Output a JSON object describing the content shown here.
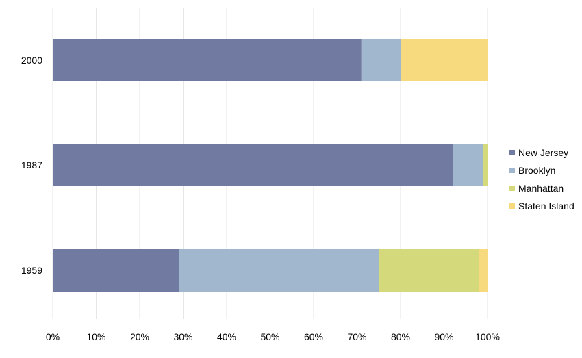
{
  "chart_data": {
    "type": "bar",
    "orientation": "horizontal",
    "stacked": "percent",
    "categories": [
      "2000",
      "1987",
      "1959"
    ],
    "series": [
      {
        "name": "New Jersey",
        "color": "#717ba1",
        "values": [
          71,
          92,
          29
        ]
      },
      {
        "name": "Brooklyn",
        "color": "#a1b7ce",
        "values": [
          9,
          7,
          46
        ]
      },
      {
        "name": "Manhattan",
        "color": "#d4da7c",
        "values": [
          0,
          1,
          23
        ]
      },
      {
        "name": "Staten Island",
        "color": "#f7da7e",
        "values": [
          20,
          0,
          2
        ]
      }
    ],
    "xlim": [
      0,
      100
    ],
    "xticks": [
      "0%",
      "10%",
      "20%",
      "30%",
      "40%",
      "50%",
      "60%",
      "70%",
      "80%",
      "90%",
      "100%"
    ],
    "grid": "vertical",
    "legend_position": "right"
  }
}
